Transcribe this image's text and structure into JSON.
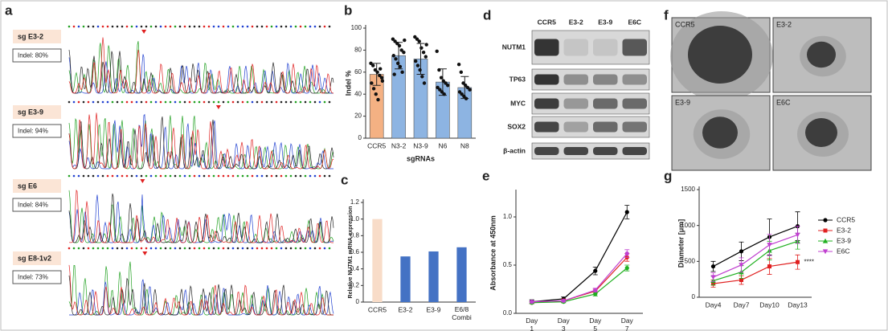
{
  "panel_a": {
    "letter": "a",
    "rows": [
      {
        "guide": "sg E3-2",
        "indel": "Indel: 80%"
      },
      {
        "guide": "sg E3-9",
        "indel": "Indel: 94%"
      },
      {
        "guide": "sg E6",
        "indel": "Indel: 84%"
      },
      {
        "guide": "sg E8-1v2",
        "indel": "Indel: 73%"
      }
    ]
  },
  "panel_d": {
    "letter": "d",
    "lanes": [
      "CCR5",
      "E3-2",
      "E3-9",
      "E6C"
    ],
    "proteins": [
      "NUTM1",
      "TP63",
      "MYC",
      "SOX2",
      "β-actin"
    ]
  },
  "panel_f": {
    "letter": "f",
    "images": [
      "CCR5",
      "E3-2",
      "E3-9",
      "E6C"
    ]
  },
  "chart_data": [
    {
      "panel": "b",
      "type": "bar",
      "y_label": "Indel %",
      "x_label": "sgRNAs",
      "categories": [
        "CCR5",
        "N3-2",
        "N3-9",
        "N6",
        "N8"
      ],
      "values": [
        58,
        75,
        72,
        51,
        46
      ],
      "errors": [
        10,
        12,
        14,
        12,
        10
      ],
      "colors": [
        "#f4b183",
        "#8db4e2",
        "#8db4e2",
        "#8db4e2",
        "#8db4e2"
      ],
      "points": [
        [
          68,
          66,
          62,
          60,
          57,
          55,
          50,
          45,
          40,
          35,
          63,
          52
        ],
        [
          90,
          88,
          86,
          84,
          80,
          78,
          75,
          72,
          68,
          65,
          60,
          89,
          58
        ],
        [
          92,
          90,
          88,
          82,
          78,
          74,
          70,
          66,
          62,
          56,
          50,
          85
        ],
        [
          79,
          62,
          55,
          52,
          50,
          48,
          46,
          44,
          42,
          40
        ],
        [
          67,
          60,
          50,
          48,
          46,
          44,
          42,
          40,
          38,
          36
        ]
      ],
      "ylim": [
        0,
        100
      ],
      "yticks": [
        0,
        20,
        40,
        60,
        80,
        100
      ]
    },
    {
      "panel": "c",
      "type": "bar",
      "y_label": "Relative NUTM1 mRNA expression",
      "categories": [
        "CCR5",
        "E3-2",
        "E3-9",
        "E6/8 Combi"
      ],
      "values": [
        1,
        0.55,
        0.61,
        0.66
      ],
      "colors": [
        "#f8dcc8",
        "#4472c4",
        "#4472c4",
        "#4472c4"
      ],
      "ylim": [
        0,
        1.2
      ],
      "yticks": [
        0,
        0.2,
        0.4,
        0.6,
        0.8,
        {
          "value": 1,
          "label": "1.0"
        },
        1.2
      ]
    },
    {
      "panel": "e",
      "type": "line",
      "y_label": "Absorbance at 450nm",
      "categories": [
        "Day 1",
        "Day 3",
        "Day 5",
        "Day 7"
      ],
      "series": [
        {
          "color": "#000000",
          "marker": "circle",
          "values": [
            0.12,
            0.15,
            0.44,
            1.05
          ],
          "errors": [
            0.02,
            0.02,
            0.04,
            0.07
          ]
        },
        {
          "color": "#e02020",
          "marker": "circle",
          "values": [
            0.11,
            0.13,
            0.23,
            0.58
          ],
          "errors": [
            0.01,
            0.02,
            0.02,
            0.04
          ]
        },
        {
          "color": "#20b020",
          "marker": "circle",
          "values": [
            0.11,
            0.12,
            0.2,
            0.47
          ],
          "errors": [
            0.01,
            0.01,
            0.02,
            0.03
          ]
        },
        {
          "color": "#c040d0",
          "marker": "circle",
          "values": [
            0.12,
            0.13,
            0.24,
            0.62
          ],
          "errors": [
            0.01,
            0.01,
            0.02,
            0.04
          ]
        }
      ],
      "ylim": [
        0,
        1.25
      ],
      "yticks": [
        {
          "value": 0,
          "label": "0.0"
        },
        0.5,
        {
          "value": 1,
          "label": "1.0"
        }
      ]
    },
    {
      "panel": "g",
      "type": "line",
      "y_label": "Diameter [μm]",
      "annotation": "****",
      "categories": [
        "Day4",
        "Day7",
        "Day10",
        "Day13"
      ],
      "series": [
        {
          "name": "CCR5",
          "color": "#000000",
          "marker": "circle",
          "values": [
            430,
            640,
            840,
            990
          ],
          "errors": [
            70,
            130,
            250,
            200
          ]
        },
        {
          "name": "E3-2",
          "color": "#e02020",
          "marker": "square",
          "values": [
            190,
            240,
            430,
            490
          ],
          "errors": [
            50,
            60,
            110,
            100
          ]
        },
        {
          "name": "E3-9",
          "color": "#20b020",
          "marker": "triangle",
          "values": [
            230,
            350,
            650,
            780
          ],
          "errors": [
            60,
            90,
            130,
            110
          ]
        },
        {
          "name": "E6C",
          "color": "#c040d0",
          "marker": "triangle-down",
          "values": [
            280,
            450,
            730,
            870
          ],
          "errors": [
            60,
            100,
            150,
            120
          ]
        }
      ],
      "ylim": [
        0,
        1500
      ],
      "yticks": [
        0,
        500,
        1000,
        1500
      ],
      "legend": "right"
    }
  ]
}
